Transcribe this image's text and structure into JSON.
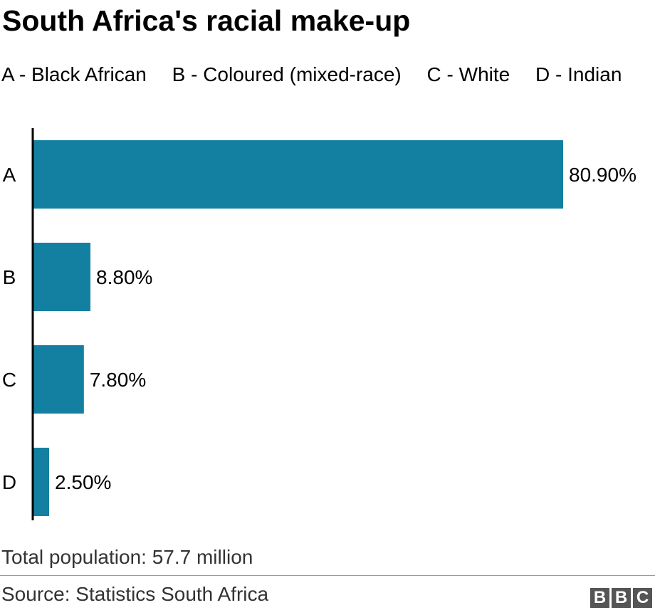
{
  "chart_data": {
    "type": "bar",
    "orientation": "horizontal",
    "title": "South Africa's racial make-up",
    "legend": [
      "A - Black African",
      "B - Coloured (mixed-race)",
      "C - White",
      "D - Indian"
    ],
    "categories": [
      "A",
      "B",
      "C",
      "D"
    ],
    "values": [
      80.9,
      8.8,
      7.8,
      2.5
    ],
    "value_labels": [
      "80.90%",
      "8.80%",
      "7.80%",
      "2.50%"
    ],
    "xlim": [
      0,
      80.9
    ],
    "grid": false,
    "bar_color": "#1380A1"
  },
  "note": "Total population: 57.7 million",
  "source": "Source: Statistics South Africa",
  "logo": {
    "letters": [
      "B",
      "B",
      "C"
    ]
  }
}
